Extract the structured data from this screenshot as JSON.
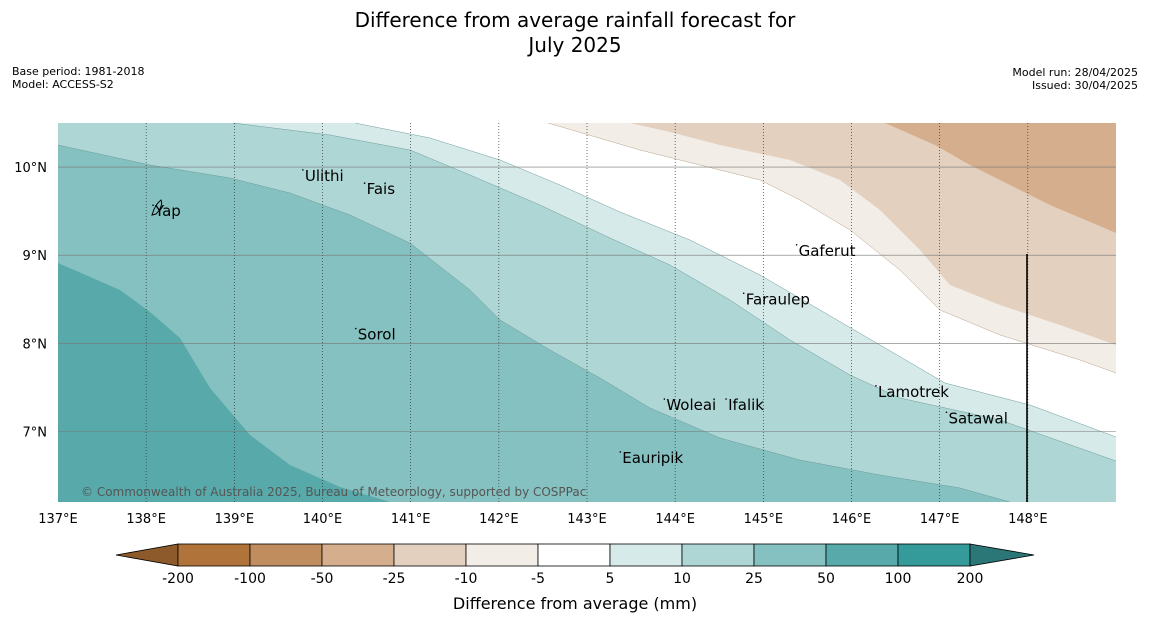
{
  "title_line1": "Difference from average rainfall forecast for",
  "title_line2": "July 2025",
  "meta_left": {
    "base_period": "Base period: 1981-2018",
    "model": "Model: ACCESS-S2"
  },
  "meta_right": {
    "model_run": "Model run: 28/04/2025",
    "issued": "Issued: 30/04/2025"
  },
  "map": {
    "lon_range": [
      137,
      149
    ],
    "lat_range": [
      6.2,
      10.5
    ],
    "lon_ticks": [
      "137°E",
      "138°E",
      "139°E",
      "140°E",
      "141°E",
      "142°E",
      "143°E",
      "144°E",
      "145°E",
      "146°E",
      "147°E",
      "148°E"
    ],
    "lat_ticks": [
      "7°N",
      "8°N",
      "9°N",
      "10°N"
    ],
    "places": [
      {
        "name": "Ulithi",
        "lon": 139.8,
        "lat": 9.9
      },
      {
        "name": "Fais",
        "lon": 140.5,
        "lat": 9.75
      },
      {
        "name": "Yap",
        "lon": 138.1,
        "lat": 9.5
      },
      {
        "name": "Gaferut",
        "lon": 145.4,
        "lat": 9.05
      },
      {
        "name": "Faraulep",
        "lon": 144.8,
        "lat": 8.5
      },
      {
        "name": "Sorol",
        "lon": 140.4,
        "lat": 8.1
      },
      {
        "name": "Woleai",
        "lon": 143.9,
        "lat": 7.3
      },
      {
        "name": "Ifalik",
        "lon": 144.6,
        "lat": 7.3
      },
      {
        "name": "Lamotrek",
        "lon": 146.3,
        "lat": 7.45
      },
      {
        "name": "Satawal",
        "lon": 147.1,
        "lat": 7.15
      },
      {
        "name": "Eauripik",
        "lon": 143.4,
        "lat": 6.7
      }
    ],
    "copyright": "© Commonwealth of Australia 2025, Bureau of Meteorology, supported by COSPPac"
  },
  "colorbar": {
    "title": "Difference from average (mm)",
    "labels": [
      "-200",
      "-100",
      "-50",
      "-25",
      "-10",
      "-5",
      "5",
      "10",
      "25",
      "50",
      "100",
      "200"
    ],
    "colors": [
      "#8c5a2b",
      "#b0743a",
      "#c08d5f",
      "#d4ae8d",
      "#e3d0bf",
      "#f2ede6",
      "#ffffff",
      "#d6eae9",
      "#aed6d5",
      "#84c1c0",
      "#58aaaa",
      "#359a9a",
      "#2b7777"
    ]
  }
}
